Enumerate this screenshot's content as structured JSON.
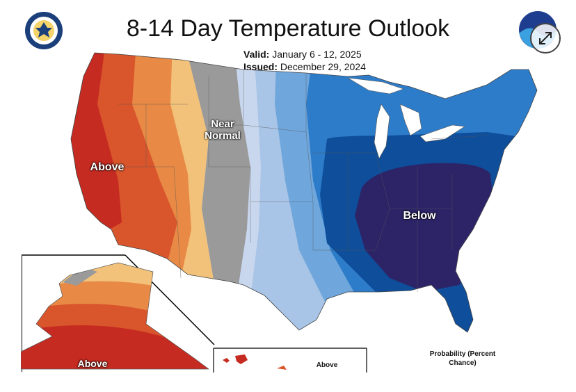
{
  "map": {
    "title": "8-14 Day Temperature Outlook",
    "valid_label": "Valid:",
    "valid_dates": "January 6 - 12, 2025",
    "issued_label": "Issued:",
    "issued_date": "December 29, 2024",
    "regions": {
      "above_west": "Above",
      "near_normal": "Near Normal",
      "below_east": "Below",
      "above_alaska": "Above",
      "above_hawaii": "Above"
    },
    "legend_note": "Probability (Percent Chance)"
  },
  "colors": {
    "above_light": "#f2c27a",
    "above_med": "#e88a45",
    "above_strong": "#d9552c",
    "above_max": "#c62b21",
    "near_normal": "#9a9a9a",
    "below_light": "#c9d7ee",
    "below_light2": "#a8c4e6",
    "below_med": "#6fa6dc",
    "below_strong": "#2d7cc9",
    "below_deep": "#0e4e9a",
    "below_max": "#2d2468",
    "lakes": "#ffffff"
  },
  "icons": {
    "doc_seal": "department-of-commerce-seal-icon",
    "noaa": "noaa-logo-icon",
    "expand": "expand-icon"
  }
}
